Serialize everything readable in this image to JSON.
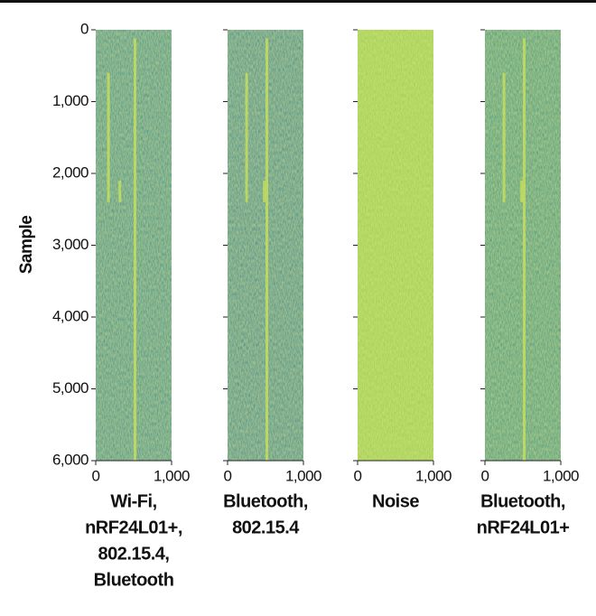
{
  "chart_data": [
    {
      "type": "heatmap",
      "title": [
        "Wi-Fi,",
        "nRF24L01+,",
        "802.15.4,",
        "Bluetooth"
      ],
      "ylabel": "Sample",
      "color": "#1f8f8a",
      "xlim": [
        0,
        1000
      ],
      "xticks": [
        0,
        {
          "value": 1000,
          "label": "1,000"
        }
      ],
      "ylim": [
        6000,
        0
      ],
      "yticks": [
        0,
        {
          "value": 1000,
          "label": "1,000"
        },
        {
          "value": 2000,
          "label": "2,000"
        },
        {
          "value": 3000,
          "label": "3,000"
        },
        {
          "value": 4000,
          "label": "4,000"
        },
        {
          "value": 5000,
          "label": "5,000"
        },
        {
          "value": 6000,
          "label": "6,000"
        }
      ]
    },
    {
      "type": "heatmap",
      "title": [
        "Bluetooth,",
        "802.15.4"
      ],
      "color": "#1e8a8c",
      "xlim": [
        0,
        1000
      ],
      "xticks": [
        0,
        {
          "value": 1000,
          "label": "1,000"
        }
      ]
    },
    {
      "type": "heatmap",
      "title": [
        "Noise"
      ],
      "color": "#9ccc48",
      "xlim": [
        0,
        1000
      ],
      "xticks": [
        0,
        {
          "value": 1000,
          "label": "1,000"
        }
      ]
    },
    {
      "type": "heatmap",
      "title": [
        "Bluetooth,",
        "nRF24L01+"
      ],
      "color": "#26967f",
      "xlim": [
        0,
        1000
      ],
      "xticks": [
        0,
        {
          "value": 1000,
          "label": "1,000"
        }
      ]
    }
  ]
}
